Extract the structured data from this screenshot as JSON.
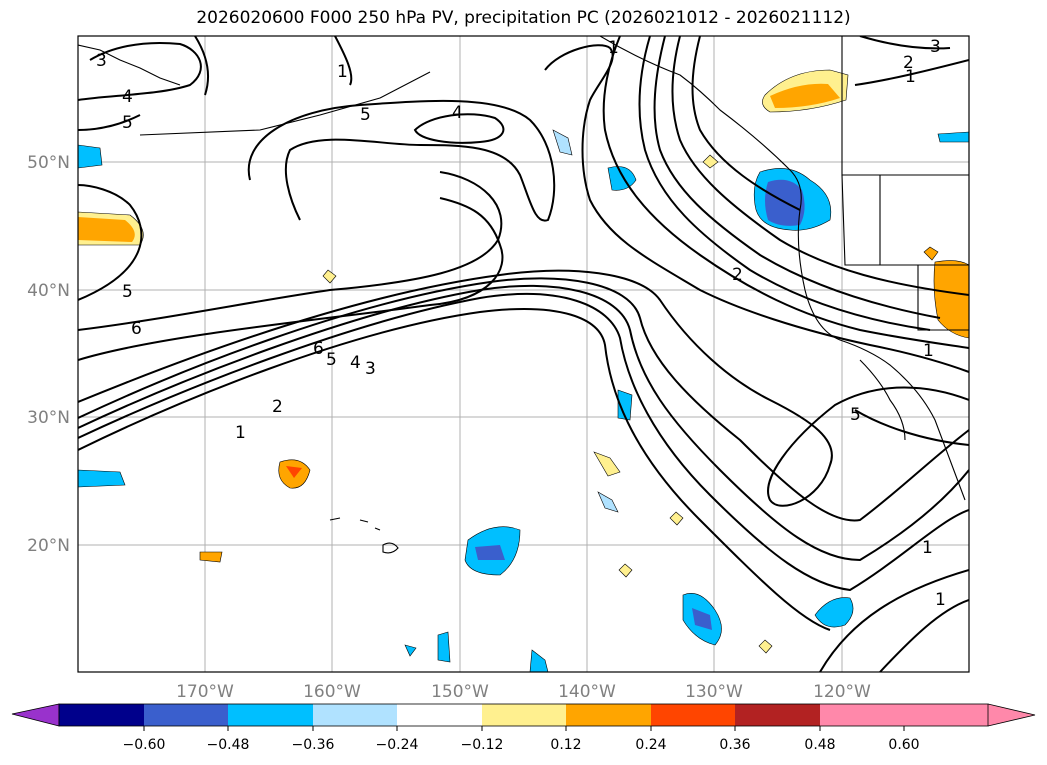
{
  "title": "2026020600 F000 250 hPa PV, precipitation PC (2026021012 - 2026021112)",
  "axes": {
    "lat_labels": [
      "50°N",
      "40°N",
      "30°N",
      "20°N"
    ],
    "lon_labels": [
      "170°W",
      "160°W",
      "150°W",
      "140°W",
      "130°W",
      "120°W"
    ]
  },
  "contour_labels": [
    "3",
    "4",
    "5",
    "1",
    "5",
    "4",
    "1",
    "2",
    "1",
    "3",
    "5",
    "6",
    "6",
    "5",
    "4",
    "3",
    "2",
    "1",
    "2",
    "1",
    "5",
    "1",
    "1"
  ],
  "colorbar": {
    "ticks": [
      "−0.60",
      "−0.48",
      "−0.36",
      "−0.24",
      "−0.12",
      "0.12",
      "0.24",
      "0.36",
      "0.48",
      "0.60"
    ],
    "colors": [
      "#9932cc",
      "#00008b",
      "#3a5fcd",
      "#00bfff",
      "#b0e2ff",
      "#ffffff",
      "#fff08f",
      "#ffa500",
      "#ff4500",
      "#b22222",
      "#ff88aa"
    ]
  }
}
